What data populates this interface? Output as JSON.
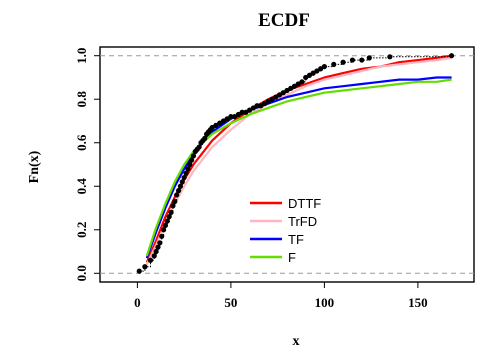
{
  "chart_data": {
    "type": "line",
    "title": "ECDF",
    "xlabel": "x",
    "ylabel": "Fn(x)",
    "xlim": [
      -20,
      180
    ],
    "ylim": [
      -0.04,
      1.04
    ],
    "xticks": [
      0,
      50,
      100,
      150
    ],
    "yticks": [
      0.0,
      0.2,
      0.4,
      0.6,
      0.8,
      1.0
    ],
    "xtick_labels": [
      "0",
      "50",
      "100",
      "150"
    ],
    "ytick_labels": [
      "0.0",
      "0.2",
      "0.4",
      "0.6",
      "0.8",
      "1.0"
    ],
    "grid": false,
    "reference_lines_y": [
      0,
      1
    ],
    "legend_position": "center-right",
    "ecdf": {
      "x": [
        1,
        4,
        7,
        9,
        10,
        11,
        12,
        13,
        14,
        15,
        16,
        17,
        18,
        19,
        20,
        21,
        22,
        23,
        24,
        25,
        26,
        27,
        28,
        29,
        30,
        31,
        32,
        33,
        34,
        35,
        36,
        37,
        38,
        39,
        40,
        42,
        44,
        46,
        48,
        50,
        52,
        54,
        56,
        58,
        60,
        62,
        64,
        66,
        68,
        70,
        72,
        74,
        76,
        78,
        80,
        82,
        84,
        86,
        88,
        90,
        92,
        94,
        96,
        98,
        100,
        105,
        110,
        115,
        120,
        124,
        135,
        168
      ],
      "y": [
        0.01,
        0.03,
        0.06,
        0.08,
        0.1,
        0.12,
        0.14,
        0.17,
        0.2,
        0.22,
        0.24,
        0.26,
        0.28,
        0.31,
        0.33,
        0.36,
        0.38,
        0.4,
        0.42,
        0.44,
        0.46,
        0.48,
        0.5,
        0.52,
        0.54,
        0.56,
        0.57,
        0.58,
        0.6,
        0.61,
        0.62,
        0.64,
        0.65,
        0.66,
        0.67,
        0.68,
        0.69,
        0.7,
        0.71,
        0.72,
        0.72,
        0.73,
        0.74,
        0.74,
        0.75,
        0.76,
        0.77,
        0.77,
        0.78,
        0.79,
        0.8,
        0.81,
        0.82,
        0.83,
        0.84,
        0.85,
        0.86,
        0.87,
        0.88,
        0.9,
        0.91,
        0.92,
        0.93,
        0.94,
        0.95,
        0.96,
        0.97,
        0.98,
        0.98,
        0.99,
        0.995,
        1.0
      ]
    },
    "series": [
      {
        "name": "DTTF",
        "color": "#ff0000",
        "x": [
          5,
          10,
          15,
          20,
          25,
          30,
          40,
          50,
          60,
          70,
          80,
          90,
          100,
          110,
          120,
          130,
          140,
          150,
          160,
          168
        ],
        "y": [
          0.05,
          0.15,
          0.26,
          0.35,
          0.43,
          0.5,
          0.61,
          0.69,
          0.75,
          0.8,
          0.84,
          0.87,
          0.9,
          0.92,
          0.94,
          0.95,
          0.97,
          0.98,
          0.99,
          1.0
        ]
      },
      {
        "name": "TrFD",
        "color": "#ffb6c1",
        "x": [
          5,
          10,
          15,
          20,
          25,
          30,
          40,
          50,
          60,
          70,
          80,
          90,
          100,
          110,
          120,
          130,
          140,
          150,
          160,
          168
        ],
        "y": [
          0.04,
          0.13,
          0.23,
          0.32,
          0.4,
          0.47,
          0.58,
          0.66,
          0.73,
          0.78,
          0.82,
          0.86,
          0.89,
          0.91,
          0.93,
          0.95,
          0.96,
          0.97,
          0.98,
          0.99
        ]
      },
      {
        "name": "TF",
        "color": "#0000ff",
        "x": [
          5,
          10,
          15,
          20,
          25,
          30,
          40,
          50,
          60,
          70,
          80,
          90,
          100,
          110,
          120,
          130,
          140,
          150,
          160,
          168
        ],
        "y": [
          0.07,
          0.19,
          0.3,
          0.4,
          0.48,
          0.55,
          0.65,
          0.71,
          0.75,
          0.78,
          0.81,
          0.83,
          0.85,
          0.86,
          0.87,
          0.88,
          0.89,
          0.89,
          0.9,
          0.9
        ]
      },
      {
        "name": "F",
        "color": "#66dd00",
        "x": [
          5,
          10,
          15,
          20,
          25,
          30,
          40,
          50,
          60,
          70,
          80,
          90,
          100,
          110,
          120,
          130,
          140,
          150,
          160,
          168
        ],
        "y": [
          0.08,
          0.21,
          0.32,
          0.42,
          0.5,
          0.56,
          0.64,
          0.69,
          0.73,
          0.76,
          0.79,
          0.81,
          0.83,
          0.84,
          0.85,
          0.86,
          0.87,
          0.88,
          0.88,
          0.89
        ]
      }
    ]
  }
}
